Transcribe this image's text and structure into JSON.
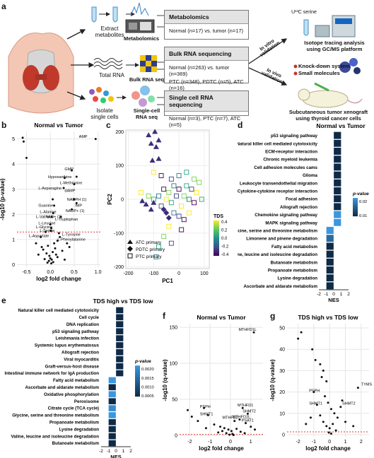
{
  "panel_a": {
    "letter": "a",
    "extract_label": "Extract\nmetabolites",
    "total_rna_label": "Total RNA",
    "isolate_label": "Isolate\nsingle cells",
    "metabolomics_icon_label": "Metabolomics",
    "bulk_icon_label": "Bulk RNA seq",
    "sc_icon_label": "Single-cell\nRNA seq",
    "boxes": [
      {
        "title": "Metabolomics",
        "body": "Normal (n=17) vs. tumor (n=17)"
      },
      {
        "title": "Bulk RNA sequencing",
        "body1": "Normal (n=263) vs. tumor (n=369)",
        "body2": "PTC (n=348), PDTC (n=5), ATC (n=16)"
      },
      {
        "title": "Single cell RNA sequencing",
        "body": "Normal (n=3), PTC (n=7), ATC (n=5)"
      }
    ],
    "in_vitro": "In vitro\nvalidation",
    "in_vivo": "In vivo\nvalidation",
    "serine_label": "U¹³C serine",
    "isotope_label": "Isotope tracing analysis\nusing GC/MS platform",
    "knockdown_label": "Knock-down system",
    "small_mol_label": "Small molecules",
    "xenograft_label": "Subcutaneous tumor xenograft\nusing thyroid cancer cells"
  },
  "panel_b": {
    "letter": "b",
    "title": "Normal vs Tumor",
    "xlabel": "log2 fold change",
    "ylabel": "-log10 (p-value)",
    "labels": [
      "AMP",
      "GMP",
      "Hypoxanthine",
      "L-Methionine",
      "dAMP",
      "L-Asparagine",
      "NADPH (1)",
      "IMP",
      "Guanine",
      "NADP+ (1)",
      "L-Alanine",
      "L-Valine",
      "NAD+ (2)",
      "L-Tryptophan",
      "L-Leucine",
      "L-Glycine",
      "L-Serine",
      "L-Aspartate",
      "L-Tyrosine",
      "L-Phenylalanine"
    ]
  },
  "panel_c": {
    "letter": "c",
    "xlabel": "PC1",
    "ylabel": "PC2",
    "legend": [
      "ATC primary",
      "PDTC primary",
      "PTC primary"
    ],
    "colorbar_title": "TDS",
    "colorbar_ticks": [
      "0.4",
      "0.2",
      "0.0",
      "-0.2",
      "-0.4"
    ]
  },
  "panel_d": {
    "letter": "d",
    "title": "Normal vs Tumor",
    "xlabel": "NES",
    "legend_title": "p-value",
    "legend_ticks": [
      "0.02",
      "0.01"
    ],
    "colors": {
      "dark": "#0e2a47",
      "light": "#3a97e0"
    }
  },
  "panel_e": {
    "letter": "e",
    "title": "TDS high vs TDS low",
    "xlabel": "NES",
    "legend_title": "p-value",
    "legend_ticks": [
      "0.0020",
      "0.0015",
      "0.0010",
      "0.0005"
    ]
  },
  "panel_f": {
    "letter": "f",
    "title": "Normal vs Tumor",
    "xlabel": "log2 fold change",
    "ylabel": "-log10 (q-value)",
    "labels": [
      "MTHFD1L",
      "PSPH",
      "SHMT1",
      "MTHFD1",
      "SHMT2",
      "MTHFD2",
      "MTHFD2L",
      "PSAT1"
    ]
  },
  "panel_g": {
    "letter": "g",
    "title": "TDS high vs TDS low",
    "xlabel": "log2 fold change",
    "ylabel": "-log10 (q-value)",
    "labels": [
      "TYMS",
      "PSPH",
      "SHMT1",
      "SHMT2"
    ]
  },
  "chart_data": [
    {
      "id": "b",
      "type": "scatter",
      "title": "Normal vs Tumor",
      "xlabel": "log2 fold change",
      "ylabel": "-log10 (p-value)",
      "xlim": [
        -0.7,
        1.05
      ],
      "ylim": [
        -0.1,
        5.3
      ],
      "xticks": [
        "-0.5",
        "0.0",
        "0.5",
        "1.0"
      ],
      "yticks": [
        "0",
        "1",
        "2",
        "3",
        "4",
        "5"
      ],
      "threshold_y": 1.3,
      "points": [
        {
          "x": -0.58,
          "y": 5.05
        },
        {
          "x": -0.56,
          "y": 4.9
        },
        {
          "x": -0.5,
          "y": 4.25
        },
        {
          "x": 0.95,
          "y": 5.0
        },
        {
          "x": 0.45,
          "y": 3.75
        },
        {
          "x": 0.3,
          "y": 3.45
        },
        {
          "x": 0.55,
          "y": 3.5
        },
        {
          "x": 0.5,
          "y": 3.2
        },
        {
          "x": 0.28,
          "y": 3.05
        },
        {
          "x": 0.5,
          "y": 2.6
        },
        {
          "x": 0.55,
          "y": 2.45
        },
        {
          "x": 0.05,
          "y": 2.6
        },
        {
          "x": 0.08,
          "y": 2.35
        },
        {
          "x": 0.45,
          "y": 2.2
        },
        {
          "x": 0.06,
          "y": 2.05
        },
        {
          "x": 0.03,
          "y": 1.9
        },
        {
          "x": 0.22,
          "y": 1.9
        },
        {
          "x": 0.0,
          "y": 1.6
        },
        {
          "x": 0.02,
          "y": 1.45
        },
        {
          "x": 0.01,
          "y": 1.35
        },
        {
          "x": -0.1,
          "y": 1.3
        },
        {
          "x": 0.2,
          "y": 1.1
        },
        {
          "x": 0.15,
          "y": 0.95
        },
        {
          "x": -0.2,
          "y": 1.1
        },
        {
          "x": -0.3,
          "y": 0.85
        },
        {
          "x": 0.4,
          "y": 0.7
        },
        {
          "x": 0.35,
          "y": 0.85
        },
        {
          "x": -0.05,
          "y": 0.75
        },
        {
          "x": 0.1,
          "y": 0.65
        },
        {
          "x": -0.15,
          "y": 0.6
        },
        {
          "x": 0.05,
          "y": 0.5
        },
        {
          "x": -0.08,
          "y": 0.45
        },
        {
          "x": 0.12,
          "y": 0.4
        },
        {
          "x": -0.02,
          "y": 0.35
        },
        {
          "x": 0.0,
          "y": 0.25
        },
        {
          "x": 0.03,
          "y": 0.2
        },
        {
          "x": -0.03,
          "y": 0.15
        },
        {
          "x": 0.06,
          "y": 0.1
        },
        {
          "x": -0.06,
          "y": 0.08
        },
        {
          "x": 0.02,
          "y": 0.05
        },
        {
          "x": 0.15,
          "y": 0.3
        },
        {
          "x": 0.25,
          "y": 0.55
        },
        {
          "x": -0.25,
          "y": 0.4
        },
        {
          "x": 0.3,
          "y": 0.2
        },
        {
          "x": -0.12,
          "y": 0.22
        },
        {
          "x": 0.08,
          "y": 0.85
        },
        {
          "x": 0.18,
          "y": 1.25
        },
        {
          "x": -0.18,
          "y": 0.7
        }
      ]
    },
    {
      "id": "c",
      "type": "scatter",
      "xlabel": "PC1",
      "ylabel": "PC2",
      "xlim": [
        -210,
        120
      ],
      "ylim": [
        -205,
        205
      ],
      "xticks": [
        "-200",
        "-100",
        "0",
        "100"
      ],
      "yticks": [
        "-200",
        "-100",
        "0",
        "100",
        "200"
      ],
      "series": [
        {
          "name": "ATC primary",
          "points": [
            [
              -120,
              190
            ],
            [
              -95,
              200
            ],
            [
              -80,
              175
            ],
            [
              -110,
              165
            ],
            [
              -90,
              155
            ],
            [
              -105,
              115
            ],
            [
              -80,
              120
            ],
            [
              -100,
              -10
            ],
            [
              -130,
              -15
            ],
            [
              -145,
              -5
            ],
            [
              -110,
              -30
            ]
          ]
        },
        {
          "name": "PDTC primary",
          "points": [
            [
              -60,
              -30
            ],
            [
              -40,
              -55
            ],
            [
              -50,
              -40
            ]
          ]
        },
        {
          "name": "PTC primary",
          "points": [
            [
              -150,
              20
            ],
            [
              -120,
              10
            ],
            [
              -100,
              0
            ],
            [
              -80,
              10
            ],
            [
              -70,
              -20
            ],
            [
              -60,
              30
            ],
            [
              -50,
              0
            ],
            [
              -40,
              20
            ],
            [
              -30,
              -10
            ],
            [
              -20,
              40
            ],
            [
              -10,
              10
            ],
            [
              0,
              30
            ],
            [
              10,
              -20
            ],
            [
              20,
              10
            ],
            [
              30,
              40
            ],
            [
              40,
              0
            ],
            [
              50,
              30
            ],
            [
              60,
              -10
            ],
            [
              70,
              20
            ],
            [
              80,
              50
            ],
            [
              90,
              0
            ],
            [
              -20,
              -40
            ],
            [
              0,
              -50
            ],
            [
              20,
              -60
            ],
            [
              -40,
              -80
            ],
            [
              -60,
              -110
            ],
            [
              -80,
              -140
            ],
            [
              -90,
              -170
            ],
            [
              -30,
              -130
            ],
            [
              10,
              -90
            ],
            [
              40,
              -40
            ],
            [
              60,
              60
            ],
            [
              30,
              80
            ],
            [
              0,
              70
            ],
            [
              -30,
              60
            ],
            [
              -70,
              70
            ],
            [
              -100,
              80
            ]
          ]
        }
      ]
    },
    {
      "id": "d",
      "type": "bar",
      "title": "Normal vs Tumor",
      "xlabel": "NES",
      "xlim": [
        -2,
        2
      ],
      "xticks": [
        "-2",
        "-1",
        "0",
        "1",
        "2"
      ],
      "categories": [
        "p53 signaling pathway",
        "Natural killer cell mediated cytotoxicity",
        "ECM-receptor interaction",
        "Chronic myeloid leukemia",
        "Cell adhesion molecules cams",
        "Glioma",
        "Leukocyte transendothelial migration",
        "Cytokine-cytokine receptor interaction",
        "Focal adhesion",
        "Allograft rejection",
        "Chemokine signaling pathway",
        "MAPK signaling pathway",
        "Glycine, serine and threonine metabolism",
        "Limonene and pinene degradation",
        "Fatty acid metabolism",
        "Valine, leucine and isoleucine degradation",
        "Butanoate metabolism",
        "Propanoate metabolism",
        "Lysine degradation",
        "Ascorbate and aldarate metabolism"
      ],
      "values": [
        1.0,
        1.0,
        1.0,
        1.0,
        1.0,
        1.0,
        1.0,
        1.0,
        1.0,
        1.0,
        1.0,
        1.0,
        -1.0,
        -1.0,
        -1.0,
        -1.0,
        -1.0,
        -1.0,
        -1.0,
        -1.0
      ],
      "pvalue_level": [
        0.0,
        0.0,
        0.0,
        0.0,
        0.0,
        0.0,
        0.0,
        0.0,
        0.0,
        0.0,
        1.0,
        1.0,
        1.0,
        0.6,
        0.0,
        0.0,
        0.0,
        0.0,
        0.0,
        0.0
      ]
    },
    {
      "id": "e",
      "type": "bar",
      "title": "TDS high vs TDS low",
      "xlabel": "NES",
      "xlim": [
        -2,
        2
      ],
      "xticks": [
        "-2",
        "-1",
        "0",
        "1",
        "2"
      ],
      "categories": [
        "Natural killer cell mediated cytotoxicity",
        "Cell cycle",
        "DNA replication",
        "p53 signaling pathway",
        "Leishmania infection",
        "Systemic lupus erythematosus",
        "Allograft rejection",
        "Viral myocarditis",
        "Graft-versus-host disease",
        "Intestinal immune network for IgA production",
        "Fatty acid metabolism",
        "Ascorbate and aldarate metabolism",
        "Oxidative phosphorylation",
        "Peroxisome",
        "Citrate cycle (TCA cycle)",
        "Glycine, serine and threonine metabolism",
        "Propanoate metabolism",
        "Lysine degradation",
        "Valine, leucine and isoleucine degradation",
        "Butanoate metabolism"
      ],
      "values": [
        1.0,
        1.0,
        1.0,
        1.0,
        1.0,
        1.0,
        1.0,
        1.0,
        1.0,
        1.0,
        -1.0,
        -1.0,
        -1.0,
        -1.0,
        -1.0,
        -1.0,
        -1.0,
        -1.0,
        -1.0,
        -1.0
      ],
      "pvalue_level": [
        0.0,
        0.0,
        0.0,
        0.0,
        0.0,
        0.0,
        0.0,
        0.0,
        0.0,
        0.0,
        1.0,
        0.0,
        1.0,
        0.0,
        0.9,
        1.0,
        0.0,
        0.0,
        0.0,
        0.0
      ]
    },
    {
      "id": "f",
      "type": "scatter",
      "title": "Normal vs Tumor",
      "xlabel": "log2 fold change",
      "ylabel": "-log10 (q-value)",
      "xlim": [
        -2.5,
        1.6
      ],
      "ylim": [
        -2,
        155
      ],
      "xticks": [
        "-2",
        "-1",
        "0",
        "1"
      ],
      "yticks": [
        "0",
        "50",
        "100",
        "150"
      ],
      "threshold_y": 1.3,
      "points": [
        {
          "x": 1.15,
          "y": 143
        },
        {
          "x": -1.3,
          "y": 38
        },
        {
          "x": -1.1,
          "y": 28
        },
        {
          "x": 0.6,
          "y": 38
        },
        {
          "x": 0.85,
          "y": 30
        },
        {
          "x": 0.45,
          "y": 22
        },
        {
          "x": 0.75,
          "y": 17
        },
        {
          "x": 0.2,
          "y": 20
        },
        {
          "x": -2.1,
          "y": 35
        },
        {
          "x": -1.9,
          "y": 26
        },
        {
          "x": -1.6,
          "y": 20
        },
        {
          "x": -0.8,
          "y": 15
        },
        {
          "x": -0.5,
          "y": 12
        },
        {
          "x": -0.3,
          "y": 10
        },
        {
          "x": -0.1,
          "y": 8
        },
        {
          "x": 0.05,
          "y": 6
        },
        {
          "x": 0.3,
          "y": 9
        },
        {
          "x": 0.5,
          "y": 5
        },
        {
          "x": -0.6,
          "y": 4
        },
        {
          "x": -0.2,
          "y": 3
        },
        {
          "x": 0.1,
          "y": 2
        },
        {
          "x": -0.05,
          "y": 1
        },
        {
          "x": 0.15,
          "y": 0.5
        },
        {
          "x": -0.4,
          "y": 6
        },
        {
          "x": 1.0,
          "y": 12
        },
        {
          "x": 1.2,
          "y": 8
        },
        {
          "x": -1.2,
          "y": 10
        },
        {
          "x": 0.7,
          "y": 3
        }
      ]
    },
    {
      "id": "g",
      "type": "scatter",
      "title": "TDS high vs TDS low",
      "xlabel": "log2 fold change",
      "ylabel": "-log10 (q-value)",
      "xlim": [
        -2.7,
        2.5
      ],
      "ylim": [
        -1,
        52
      ],
      "xticks": [
        "-2",
        "-1",
        "0",
        "1",
        "2"
      ],
      "yticks": [
        "0",
        "10",
        "20",
        "30",
        "40",
        "50"
      ],
      "threshold_y": 1.3,
      "points": [
        {
          "x": -1.8,
          "y": 48
        },
        {
          "x": -2.0,
          "y": 45
        },
        {
          "x": -1.1,
          "y": 40
        },
        {
          "x": -0.9,
          "y": 35
        },
        {
          "x": -0.6,
          "y": 33
        },
        {
          "x": -0.4,
          "y": 30
        },
        {
          "x": -0.5,
          "y": 27
        },
        {
          "x": -0.2,
          "y": 25
        },
        {
          "x": 1.8,
          "y": 22
        },
        {
          "x": -1.0,
          "y": 20
        },
        {
          "x": -0.8,
          "y": 14
        },
        {
          "x": 0.7,
          "y": 13
        },
        {
          "x": -0.3,
          "y": 18
        },
        {
          "x": -0.1,
          "y": 15
        },
        {
          "x": 0.1,
          "y": 12
        },
        {
          "x": 0.3,
          "y": 10
        },
        {
          "x": -0.6,
          "y": 9
        },
        {
          "x": 0.5,
          "y": 8
        },
        {
          "x": -0.4,
          "y": 6
        },
        {
          "x": 0.2,
          "y": 5
        },
        {
          "x": -0.2,
          "y": 4
        },
        {
          "x": 0.0,
          "y": 3
        },
        {
          "x": 0.4,
          "y": 2
        },
        {
          "x": -0.05,
          "y": 1
        },
        {
          "x": 0.1,
          "y": 0.5
        },
        {
          "x": 1.0,
          "y": 6
        },
        {
          "x": 1.5,
          "y": 4
        },
        {
          "x": -1.5,
          "y": 5
        },
        {
          "x": -1.2,
          "y": 8
        },
        {
          "x": 0.8,
          "y": 16
        }
      ]
    }
  ]
}
